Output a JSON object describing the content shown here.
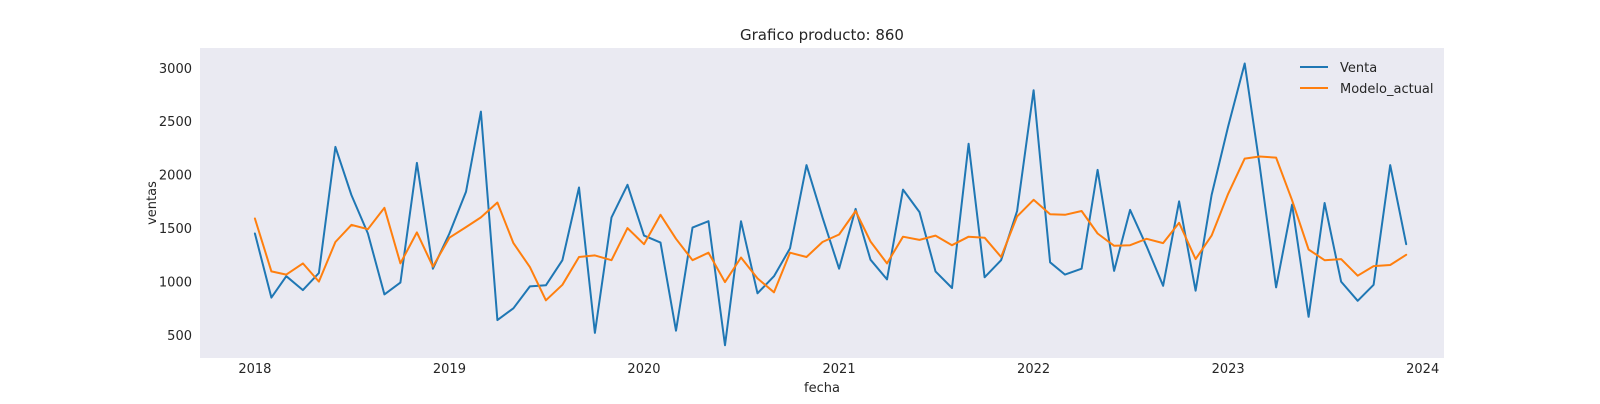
{
  "chart_data": {
    "type": "line",
    "title": "Grafico producto: 860",
    "xlabel": "fecha",
    "ylabel": "ventas",
    "grid": false,
    "background": "#eaeaf2",
    "legend_position": "top-right",
    "xlim": [
      "2017-09-20",
      "2024-02-10"
    ],
    "ylim": [
      285,
      3185
    ],
    "x_ticks": [
      "2018",
      "2019",
      "2020",
      "2021",
      "2022",
      "2023",
      "2024"
    ],
    "y_ticks": [
      "500",
      "1000",
      "1500",
      "2000",
      "2500",
      "3000"
    ],
    "x": [
      "2018-01",
      "2018-02",
      "2018-03",
      "2018-04",
      "2018-05",
      "2018-06",
      "2018-07",
      "2018-08",
      "2018-09",
      "2018-10",
      "2018-11",
      "2018-12",
      "2019-01",
      "2019-02",
      "2019-03",
      "2019-04",
      "2019-05",
      "2019-06",
      "2019-07",
      "2019-08",
      "2019-09",
      "2019-10",
      "2019-11",
      "2019-12",
      "2020-01",
      "2020-02",
      "2020-03",
      "2020-04",
      "2020-05",
      "2020-06",
      "2020-07",
      "2020-08",
      "2020-09",
      "2020-10",
      "2020-11",
      "2020-12",
      "2021-01",
      "2021-02",
      "2021-03",
      "2021-04",
      "2021-05",
      "2021-06",
      "2021-07",
      "2021-08",
      "2021-09",
      "2021-10",
      "2021-11",
      "2021-12",
      "2022-01",
      "2022-02",
      "2022-03",
      "2022-04",
      "2022-05",
      "2022-06",
      "2022-07",
      "2022-08",
      "2022-09",
      "2022-10",
      "2022-11",
      "2022-12",
      "2023-01",
      "2023-02",
      "2023-03",
      "2023-04",
      "2023-05",
      "2023-06",
      "2023-07",
      "2023-08",
      "2023-09",
      "2023-10",
      "2023-11",
      "2023-12"
    ],
    "series": [
      {
        "name": "Venta",
        "color": "#1f77b4",
        "values": [
          1450,
          850,
          1050,
          920,
          1080,
          2260,
          1810,
          1450,
          880,
          990,
          2110,
          1120,
          1450,
          1840,
          2590,
          640,
          750,
          955,
          965,
          1200,
          1880,
          520,
          1600,
          1905,
          1430,
          1365,
          540,
          1505,
          1565,
          405,
          1565,
          890,
          1050,
          1310,
          2090,
          1600,
          1120,
          1680,
          1205,
          1020,
          1860,
          1650,
          1095,
          940,
          2290,
          1040,
          1200,
          1660,
          2790,
          1180,
          1065,
          1120,
          2045,
          1100,
          1670,
          1330,
          960,
          1750,
          915,
          1810,
          2450,
          3040,
          2090,
          945,
          1720,
          670,
          1735,
          1000,
          820,
          970,
          2090,
          1350
        ]
      },
      {
        "name": "Modelo_actual",
        "color": "#ff7f0e",
        "values": [
          1590,
          1095,
          1065,
          1170,
          1000,
          1370,
          1530,
          1490,
          1690,
          1170,
          1460,
          1140,
          1410,
          1510,
          1600,
          1740,
          1360,
          1135,
          825,
          970,
          1230,
          1245,
          1200,
          1500,
          1350,
          1625,
          1400,
          1200,
          1270,
          995,
          1225,
          1030,
          900,
          1270,
          1230,
          1370,
          1440,
          1660,
          1375,
          1170,
          1420,
          1390,
          1430,
          1340,
          1420,
          1410,
          1230,
          1610,
          1765,
          1630,
          1625,
          1660,
          1450,
          1335,
          1340,
          1400,
          1360,
          1550,
          1210,
          1430,
          1820,
          2150,
          2170,
          2160,
          1760,
          1300,
          1200,
          1210,
          1055,
          1145,
          1155,
          1250
        ]
      }
    ]
  }
}
